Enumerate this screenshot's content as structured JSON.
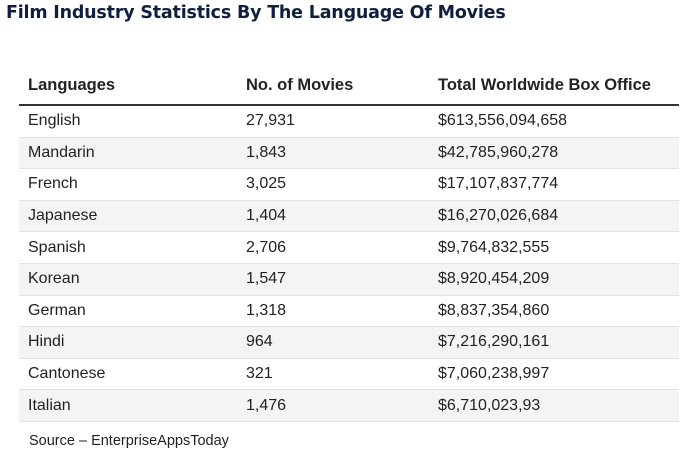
{
  "title": "Film Industry Statistics By The Language Of Movies",
  "table": {
    "headers": [
      "Languages",
      "No. of Movies",
      "Total Worldwide Box Office"
    ],
    "rows": [
      [
        "English",
        "27,931",
        "$613,556,094,658"
      ],
      [
        "Mandarin",
        "1,843",
        "$42,785,960,278"
      ],
      [
        "French",
        "3,025",
        "$17,107,837,774"
      ],
      [
        "Japanese",
        "1,404",
        "$16,270,026,684"
      ],
      [
        "Spanish",
        "2,706",
        "$9,764,832,555"
      ],
      [
        "Korean",
        "1,547",
        "$8,920,454,209"
      ],
      [
        "German",
        "1,318",
        "$8,837,354,860"
      ],
      [
        "Hindi",
        "964",
        "$7,216,290,161"
      ],
      [
        "Cantonese",
        "321",
        "$7,060,238,997"
      ],
      [
        "Italian",
        "1,476",
        "$6,710,023,93"
      ]
    ]
  },
  "source": "Source – EnterpriseAppsToday"
}
